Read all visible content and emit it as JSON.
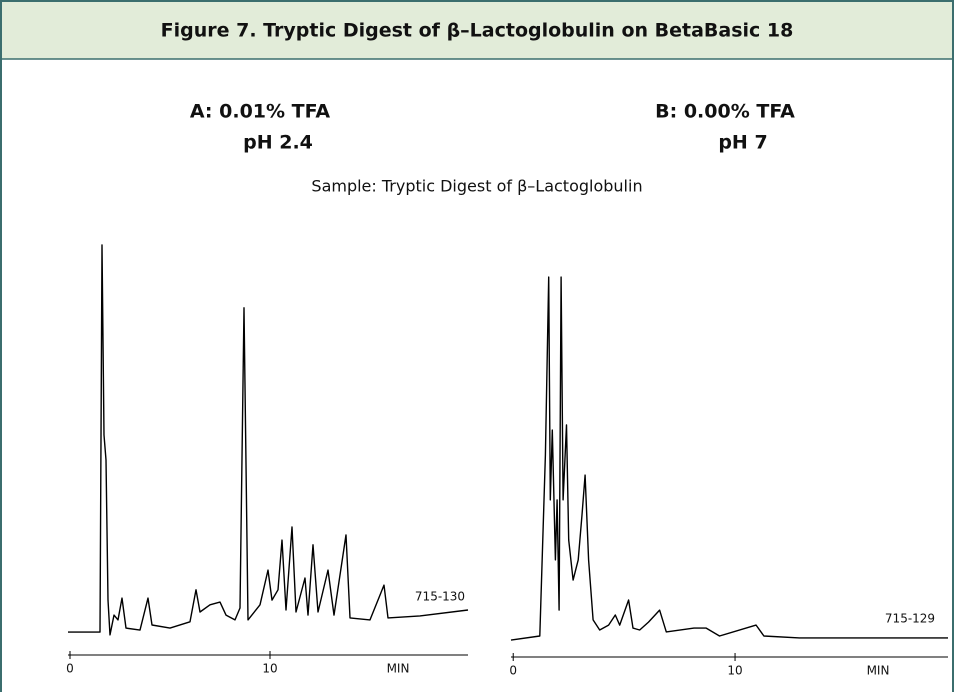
{
  "header": {
    "title": "Figure 7.  Tryptic Digest of β–Lactoglobulin on BetaBasic 18"
  },
  "caption": "Sample: Tryptic Digest of β–Lactoglobulin",
  "chart_data": [
    {
      "type": "line",
      "title": "A:  0.01% TFA",
      "subtitle": "pH 2.4",
      "annotation": "715-130",
      "x_label": "MIN",
      "color": "#000000",
      "xlim": [
        -0.1,
        19.9
      ],
      "xticks": [
        0,
        10
      ],
      "ylim": [
        0,
        100
      ],
      "x": [
        -0.1,
        1.5,
        1.6,
        1.7,
        1.8,
        1.9,
        2.0,
        2.2,
        2.4,
        2.6,
        2.8,
        3.5,
        3.9,
        4.1,
        5.0,
        6.0,
        6.3,
        6.5,
        7.0,
        7.5,
        7.8,
        8.25,
        8.5,
        8.7,
        8.9,
        9.5,
        9.9,
        10.1,
        10.4,
        10.6,
        10.8,
        11.1,
        11.3,
        11.75,
        11.9,
        12.15,
        12.4,
        12.9,
        13.2,
        13.8,
        14.0,
        15.0,
        15.7,
        15.9,
        17.5,
        19.9
      ],
      "values": [
        2.0,
        2.0,
        100,
        51.9,
        45.6,
        10.1,
        1.3,
        6.3,
        5.1,
        10.6,
        3.0,
        2.5,
        10.6,
        3.8,
        3.0,
        4.6,
        12.7,
        7.1,
        8.9,
        9.6,
        6.3,
        5.1,
        8.1,
        84.1,
        5.1,
        8.9,
        17.7,
        10.1,
        12.7,
        25.3,
        7.6,
        28.6,
        7.1,
        15.7,
        6.3,
        24.1,
        7.1,
        17.7,
        6.3,
        26.6,
        5.6,
        5.1,
        13.9,
        5.6,
        6.1,
        7.6
      ]
    },
    {
      "type": "line",
      "title": "B:  0.00% TFA",
      "subtitle": "pH 7",
      "annotation": "715-129",
      "x_label": "MIN",
      "color": "#000000",
      "xlim": [
        -0.1,
        19.6
      ],
      "xticks": [
        0,
        10
      ],
      "ylim": [
        0,
        100
      ],
      "x": [
        -0.1,
        1.2,
        1.45,
        1.6,
        1.67,
        1.76,
        1.9,
        1.98,
        2.07,
        2.16,
        2.25,
        2.4,
        2.5,
        2.7,
        2.93,
        3.1,
        3.24,
        3.4,
        3.6,
        3.9,
        4.3,
        4.6,
        4.8,
        5.2,
        5.4,
        5.7,
        6.1,
        6.6,
        6.9,
        8.15,
        8.7,
        9.3,
        10.95,
        11.3,
        12.9,
        17.4,
        19.6
      ],
      "values": [
        1.3,
        2.4,
        50.7,
        98.1,
        38.7,
        57.3,
        22.7,
        38.7,
        9.3,
        98.1,
        38.7,
        58.7,
        28.0,
        17.3,
        22.7,
        34.7,
        45.3,
        22.7,
        6.7,
        4.0,
        5.3,
        8.0,
        5.3,
        12.0,
        4.5,
        4.0,
        6.1,
        9.3,
        3.5,
        4.5,
        4.5,
        2.4,
        5.3,
        2.4,
        1.9,
        1.9,
        1.9
      ]
    }
  ]
}
